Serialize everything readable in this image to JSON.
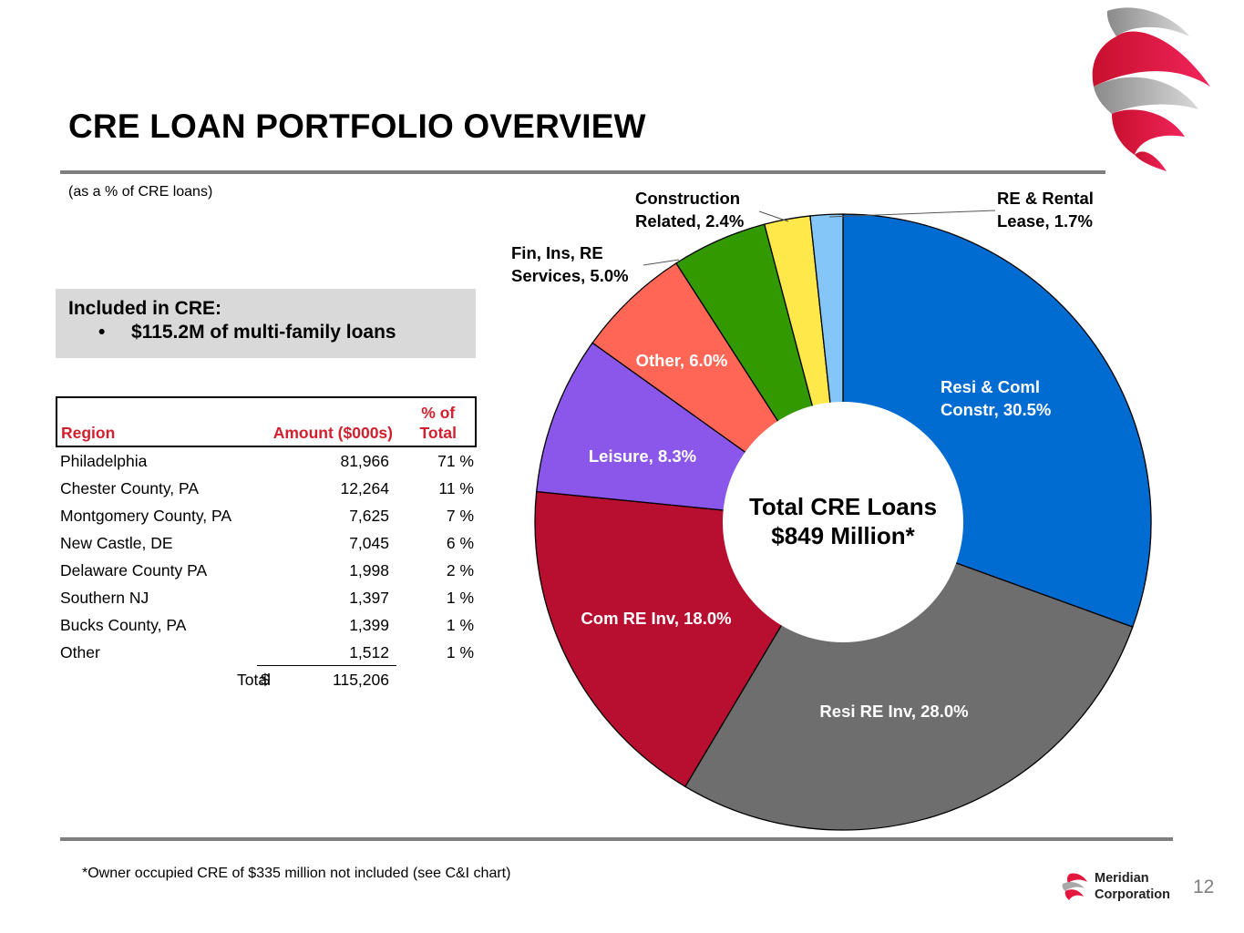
{
  "header": {
    "title": "CRE LOAN PORTFOLIO OVERVIEW",
    "subtitle": "(as a % of CRE loans)"
  },
  "callout": {
    "heading": "Included in CRE:",
    "bullet_symbol": "•",
    "bullet_text": "$115.2M of multi-family loans"
  },
  "region_table": {
    "headers": {
      "region": "Region",
      "amount": "Amount ($000s)",
      "pct_line1": "% of",
      "pct_line2": "Total"
    },
    "rows": [
      {
        "region": "Philadelphia",
        "amount": "81,966",
        "pct": "71 %"
      },
      {
        "region": "Chester County, PA",
        "amount": "12,264",
        "pct": "11 %"
      },
      {
        "region": "Montgomery County, PA",
        "amount": "7,625",
        "pct": "7 %"
      },
      {
        "region": "New Castle, DE",
        "amount": "7,045",
        "pct": "6 %"
      },
      {
        "region": "Delaware County PA",
        "amount": "1,998",
        "pct": "2 %"
      },
      {
        "region": "Southern NJ",
        "amount": "1,397",
        "pct": "1 %"
      },
      {
        "region": "Bucks County, PA",
        "amount": "1,399",
        "pct": "1 %"
      },
      {
        "region": "Other",
        "amount": "1,512",
        "pct": "1 %"
      }
    ],
    "total": {
      "label": "Total",
      "currency": "$",
      "amount": "115,206"
    }
  },
  "chart_data": {
    "type": "pie",
    "donut": true,
    "title": "",
    "center_label_line1": "Total CRE Loans",
    "center_label_line2": "$849 Million*",
    "slices": [
      {
        "label_line1": "Resi & Coml",
        "label_line2": "Constr, 30.5%",
        "name": "Resi & Coml Constr",
        "value": 30.5,
        "color": "#006bd0",
        "label_color": "#ffffff"
      },
      {
        "label_line1": "Resi RE Inv, 28.0%",
        "label_line2": "",
        "name": "Resi RE Inv",
        "value": 28.0,
        "color": "#6e6e6e",
        "label_color": "#ffffff"
      },
      {
        "label_line1": "Com RE Inv, 18.0%",
        "label_line2": "",
        "name": "Com RE Inv",
        "value": 18.0,
        "color": "#b80e2f",
        "label_color": "#ffffff"
      },
      {
        "label_line1": "Leisure, 8.3%",
        "label_line2": "",
        "name": "Leisure",
        "value": 8.3,
        "color": "#8b57ea",
        "label_color": "#ffffff"
      },
      {
        "label_line1": "Other, 6.0%",
        "label_line2": "",
        "name": "Other",
        "value": 6.0,
        "color": "#ff6655",
        "label_color": "#ffffff"
      },
      {
        "label_line1": "Fin, Ins, RE",
        "label_line2": "Services, 5.0%",
        "name": "Fin, Ins, RE Services",
        "value": 5.0,
        "color": "#339900",
        "label_color": "#000000"
      },
      {
        "label_line1": "Construction",
        "label_line2": "Related, 2.4%",
        "name": "Construction Related",
        "value": 2.4,
        "color": "#ffe84a",
        "label_color": "#000000"
      },
      {
        "label_line1": "RE & Rental",
        "label_line2": "Lease, 1.7%",
        "name": "RE & Rental Lease",
        "value": 1.7,
        "color": "#85c6f8",
        "label_color": "#000000"
      }
    ]
  },
  "footer": {
    "footnote": "*Owner occupied CRE of $335 million not included (see C&I chart)",
    "page_number": "12",
    "brand_line1": "Meridian",
    "brand_line2": "Corporation"
  },
  "colors": {
    "accent_red": "#d0202e",
    "rule_gray": "#7f7f7f",
    "callout_bg": "#d9d9d9",
    "logo_red": "#e4173e",
    "logo_gray": "#a8a8a8"
  }
}
